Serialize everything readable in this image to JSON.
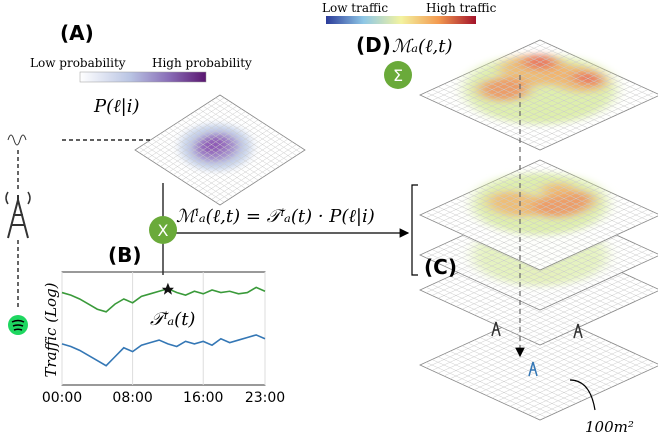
{
  "panels": {
    "a": "(A)",
    "b": "(B)",
    "c": "(C)",
    "d": "(D)"
  },
  "probability_colorbar": {
    "low": "Low probability",
    "high": "High probability"
  },
  "traffic_colorbar": {
    "low": "Low traffic",
    "high": "High traffic"
  },
  "probability_label": "P(ℓ|i)",
  "aggregate_label": "ℳₐ(ℓ,t)",
  "sum_symbol": "Σ",
  "multiply_symbol": "X",
  "formula": "ℳⁱₐ(ℓ,t) = 𝒯ⁱₐ(t) · P(ℓ|i)",
  "cell_size": "100m²",
  "traffic_plot": {
    "ylabel": "Traffic (Log)",
    "series_label": "𝒯ⁱₐ(t)",
    "xlim": [
      0,
      23
    ],
    "xticks": [
      {
        "value": 0,
        "label": "00:00"
      },
      {
        "value": 8,
        "label": "08:00"
      },
      {
        "value": 16,
        "label": "16:00"
      },
      {
        "value": 23,
        "label": "23:00"
      }
    ],
    "x": [
      0,
      1,
      2,
      3,
      4,
      5,
      6,
      7,
      8,
      9,
      10,
      11,
      12,
      13,
      14,
      15,
      16,
      17,
      18,
      19,
      20,
      21,
      22,
      23
    ],
    "series": [
      {
        "color": "#3a9a3a",
        "values": [
          8.5,
          8.3,
          8.0,
          7.6,
          7.2,
          7.0,
          7.6,
          8.0,
          7.7,
          8.2,
          8.4,
          8.6,
          8.8,
          8.5,
          8.3,
          8.6,
          8.4,
          8.7,
          8.5,
          8.6,
          8.4,
          8.5,
          8.9,
          8.6
        ]
      },
      {
        "color": "#3477b5",
        "values": [
          4.5,
          4.3,
          4.0,
          3.6,
          3.2,
          2.8,
          3.5,
          4.2,
          3.9,
          4.4,
          4.6,
          4.8,
          4.5,
          4.3,
          4.7,
          4.5,
          4.7,
          4.4,
          4.9,
          4.6,
          4.8,
          5.0,
          5.2,
          4.9
        ]
      }
    ]
  }
}
